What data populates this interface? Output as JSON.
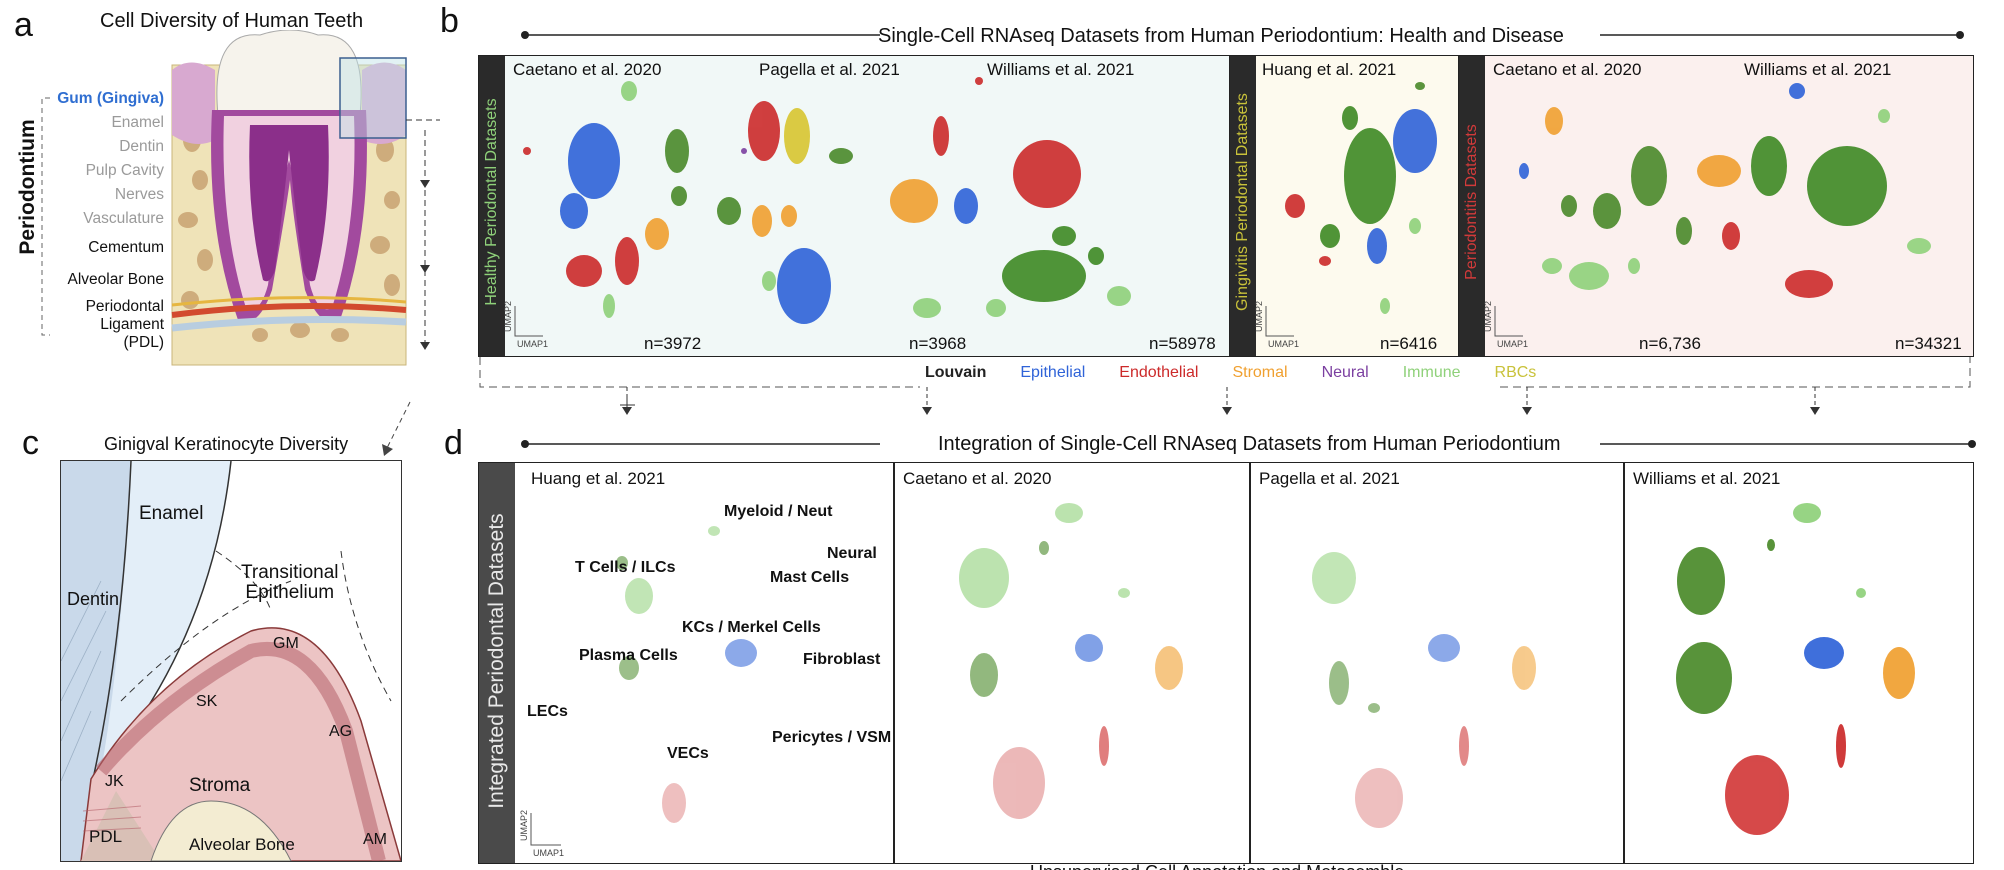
{
  "panel_a": {
    "letter": "a",
    "title": "Cell Diversity of Human Teeth",
    "side_label": "Periodontium",
    "labels": [
      "Gum (Gingiva)",
      "Enamel",
      "Dentin",
      "Pulp Cavity",
      "Nerves",
      "Vasculature",
      "Cementum",
      "Alveolar Bone",
      "Periodontal",
      "Ligament",
      "(PDL)"
    ],
    "colors": {
      "gum": "#2f6ed1",
      "grey": "#9a9a9a",
      "dark": "#111111"
    }
  },
  "panel_b": {
    "letter": "b",
    "title": "Single-Cell RNAseq Datasets from Human Periodontium: Health and Disease",
    "groups": [
      {
        "side_label": "Healthy Periodontal Datasets",
        "side_color": "#8fd17a",
        "bg": "#f1f8f7",
        "datasets": [
          {
            "name": "Caetano et al. 2020",
            "n": "n=3972"
          },
          {
            "name": "Pagella et al. 2021",
            "n": "n=3968"
          },
          {
            "name": "Williams et al. 2021",
            "n": "n=58978"
          }
        ]
      },
      {
        "side_label": "Gingivitis Periodontal Datasets",
        "side_color": "#c9c23a",
        "bg": "#fdfaee",
        "datasets": [
          {
            "name": "Huang et al. 2021",
            "n": "n=6416"
          }
        ]
      },
      {
        "side_label": "Periodontitis Datasets",
        "side_color": "#d23a3a",
        "bg": "#fbf0ee",
        "datasets": [
          {
            "name": "Caetano et al. 2020",
            "n": "n=6,736"
          },
          {
            "name": "Williams et al. 2021",
            "n": "n=34321"
          }
        ]
      }
    ],
    "axis": {
      "y": "UMAP2",
      "x": "UMAP1"
    },
    "legend": [
      {
        "label": "Louvain",
        "color": "#222222"
      },
      {
        "label": "Epithelial",
        "color": "#2f63d8"
      },
      {
        "label": "Endothelial",
        "color": "#cc2a2a"
      },
      {
        "label": "Stromal",
        "color": "#f0a030"
      },
      {
        "label": "Neural",
        "color": "#7b3fa0"
      },
      {
        "label": "Immune",
        "color": "#8fd17a"
      },
      {
        "label": "RBCs",
        "color": "#c9c23a"
      }
    ]
  },
  "panel_c": {
    "letter": "c",
    "title": "Ginigval Keratinocyte Diversity",
    "labels": {
      "enamel": "Enamel",
      "dentin": "Dentin",
      "transitional1": "Transitional",
      "transitional2": "Epithelium",
      "gm": "GM",
      "sk": "SK",
      "ag": "AG",
      "jk": "JK",
      "stroma": "Stroma",
      "pdl": "PDL",
      "bone": "Alveolar Bone",
      "am": "AM"
    }
  },
  "panel_d": {
    "letter": "d",
    "title": "Integration of Single-Cell RNAseq Datasets from Human Periodontium",
    "side_label": "Integrated Periodontal Datasets",
    "datasets": [
      "Huang et al. 2021",
      "Caetano et al. 2020",
      "Pagella et al. 2021",
      "Williams et al. 2021"
    ],
    "cell_types": [
      "Myeloid / Neut",
      "Neural",
      "T Cells / ILCs",
      "Mast Cells",
      "KCs / Merkel Cells",
      "Plasma Cells",
      "Fibroblast",
      "LECs",
      "VECs",
      "Pericytes / VSM"
    ],
    "axis": {
      "y": "UMAP2",
      "x": "UMAP1"
    },
    "footer": "Unsupervised Cell Annotation and Metasemble"
  }
}
